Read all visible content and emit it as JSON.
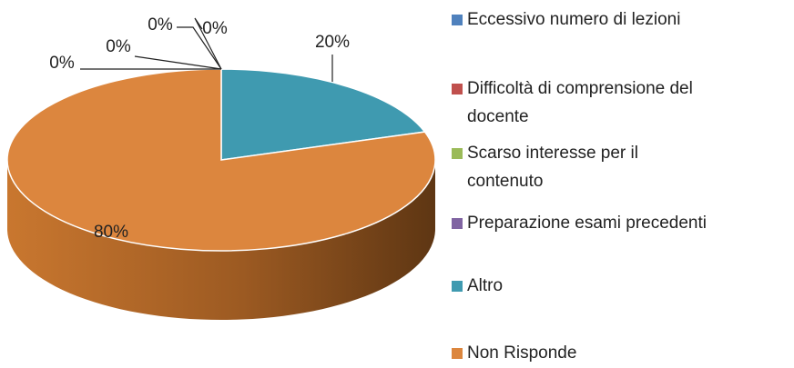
{
  "chart_data": {
    "type": "pie",
    "categories": [
      "Eccessivo numero di lezioni",
      "Difficoltà di comprensione del docente",
      "Scarso interesse per il contenuto",
      "Preparazione esami precedenti",
      "Altro",
      "Non Risponde"
    ],
    "values": [
      0,
      0,
      0,
      0,
      20,
      80
    ],
    "value_labels": [
      "0%",
      "0%",
      "0%",
      "0%",
      "20%",
      "80%"
    ],
    "colors": [
      "#4f81bd",
      "#c0504d",
      "#9bbb59",
      "#8064a2",
      "#3f9ab0",
      "#dc863e"
    ],
    "legend": "right"
  }
}
